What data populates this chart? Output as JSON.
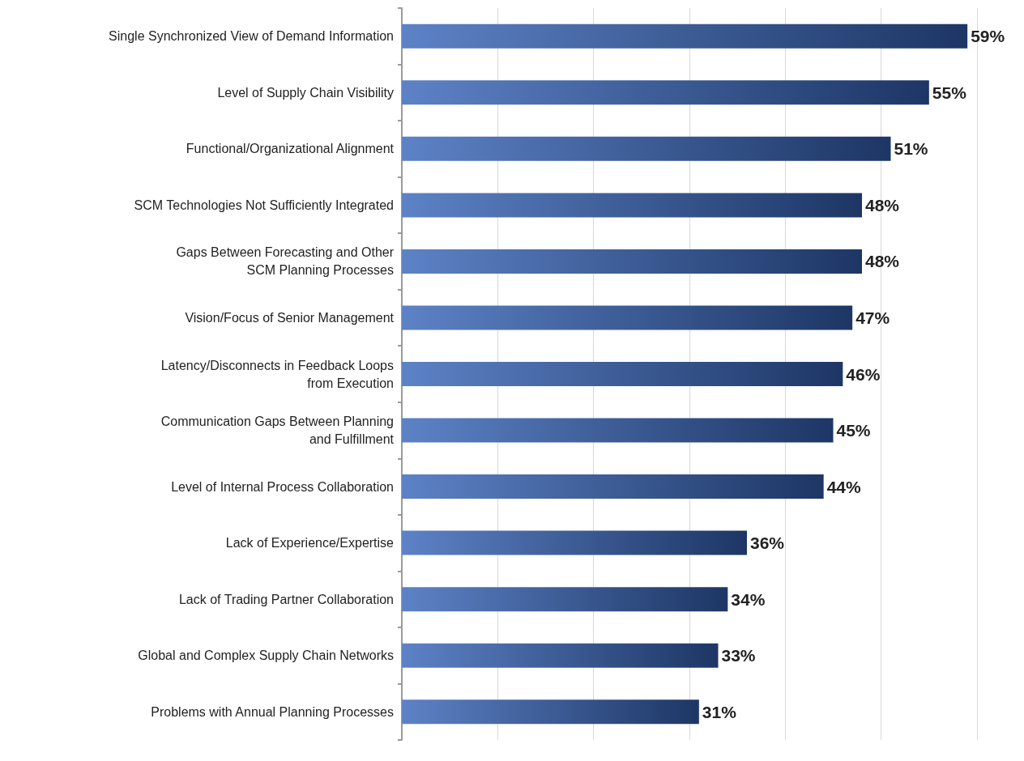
{
  "chart_data": {
    "type": "bar",
    "orientation": "horizontal",
    "categories": [
      "Single Synchronized View of Demand Information",
      "Level of Supply Chain Visibility",
      "Functional/Organizational Alignment",
      "SCM Technologies Not Sufficiently Integrated",
      "Gaps Between Forecasting and Other\nSCM Planning Processes",
      "Vision/Focus of Senior Management",
      "Latency/Disconnects in Feedback Loops\nfrom Execution",
      "Communication Gaps Between Planning\nand Fulfillment",
      "Level of Internal Process Collaboration",
      "Lack of Experience/Expertise",
      "Lack of Trading Partner Collaboration",
      "Global and Complex Supply Chain Networks",
      "Problems with Annual Planning Processes"
    ],
    "values": [
      59,
      55,
      51,
      48,
      48,
      47,
      46,
      45,
      44,
      36,
      34,
      33,
      31
    ],
    "color": "#3563b8",
    "value_labels": [
      "59%",
      "55%",
      "51%",
      "48%",
      "48%",
      "47%",
      "46%",
      "45%",
      "44%",
      "36%",
      "34%",
      "33%",
      "31%"
    ],
    "tick_labels": "y",
    "grid": "x"
  }
}
